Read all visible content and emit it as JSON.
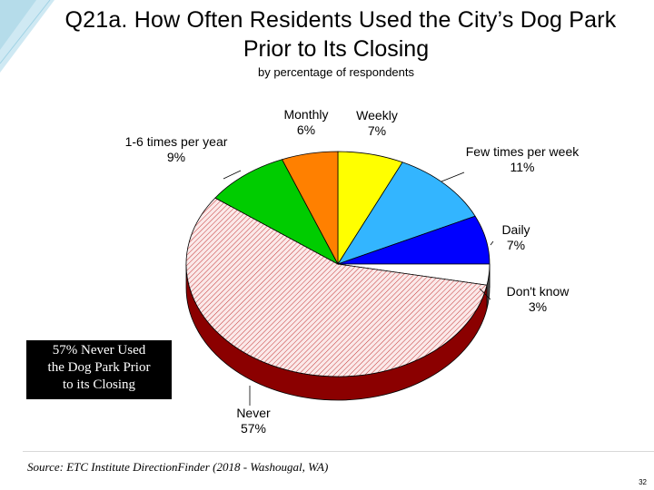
{
  "slide": {
    "title_line1": "Q21a. How Often Residents Used the City’s Dog Park",
    "title_line2": "Prior to Its Closing",
    "subtitle": "by percentage of respondents",
    "callout": [
      "57% Never Used",
      "the Dog Park Prior",
      "to its Closing"
    ],
    "source": "Source:  ETC Institute DirectionFinder (2018 - Washougal, WA)",
    "page_number": "32"
  },
  "chart_data": {
    "type": "pie",
    "title": "Q21a. How Often Residents Used the City’s Dog Park Prior to Its Closing",
    "subtitle": "by percentage of respondents",
    "slices": [
      {
        "label": "Weekly",
        "value": 7,
        "value_label": "7%",
        "color": "#ffff00"
      },
      {
        "label": "Few times per week",
        "value": 11,
        "value_label": "11%",
        "color": "#33b5ff"
      },
      {
        "label": "Daily",
        "value": 7,
        "value_label": "7%",
        "color": "#0000ff"
      },
      {
        "label": "Don't know",
        "value": 3,
        "value_label": "3%",
        "color": "#ffffff"
      },
      {
        "label": "Never",
        "value": 57,
        "value_label": "57%",
        "color": "#f4c6c6",
        "pattern": "hatched",
        "side_color": "#8b0000"
      },
      {
        "label": "1-6 times per year",
        "value": 9,
        "value_label": "9%",
        "color": "#00cc00"
      },
      {
        "label": "Monthly",
        "value": 6,
        "value_label": "6%",
        "color": "#ff8000"
      }
    ]
  }
}
